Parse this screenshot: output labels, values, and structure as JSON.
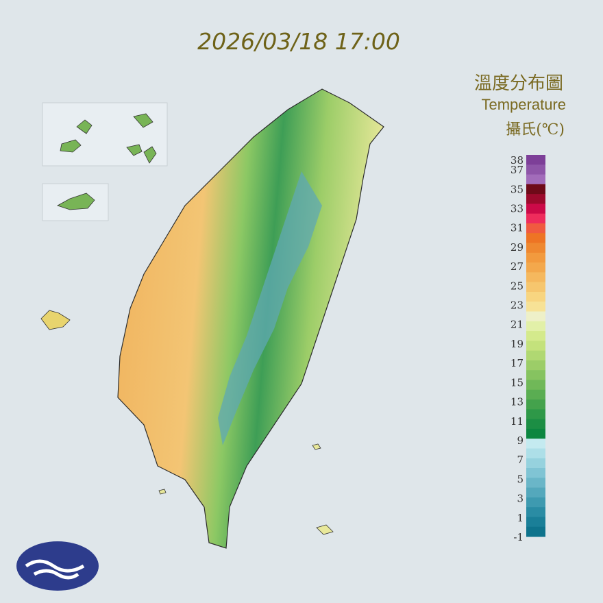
{
  "map": {
    "timestamp": "2026/03/18 17:00",
    "legend": {
      "title": "溫度分布圖",
      "subtitle": "Temperature",
      "unit": "攝氏(℃)",
      "ticks": [
        38,
        37,
        35,
        33,
        31,
        29,
        27,
        25,
        23,
        21,
        19,
        17,
        15,
        13,
        11,
        9,
        7,
        5,
        3,
        1,
        -1
      ],
      "colors": [
        "#7d3f98",
        "#8e55a8",
        "#a26cba",
        "#6e0a18",
        "#9c0a2c",
        "#cc0a48",
        "#ee2c5c",
        "#f05a40",
        "#ee7424",
        "#ef8830",
        "#f29a3e",
        "#f3a84c",
        "#f5b85e",
        "#f6c66e",
        "#f8d580",
        "#f7e296",
        "#eef0c8",
        "#e2f0a8",
        "#d4ea8c",
        "#c4e27c",
        "#b0d872",
        "#9ccd68",
        "#86c360",
        "#70b858",
        "#5aad52",
        "#44a24c",
        "#2e9848",
        "#1c8e44",
        "#0c8640",
        "#c4eaf0",
        "#addfe8",
        "#96d2de",
        "#80c4d4",
        "#6ab6c8",
        "#54a8bc",
        "#3e9ab0",
        "#2a8ca4",
        "#1a7f98",
        "#0e738c"
      ]
    }
  }
}
